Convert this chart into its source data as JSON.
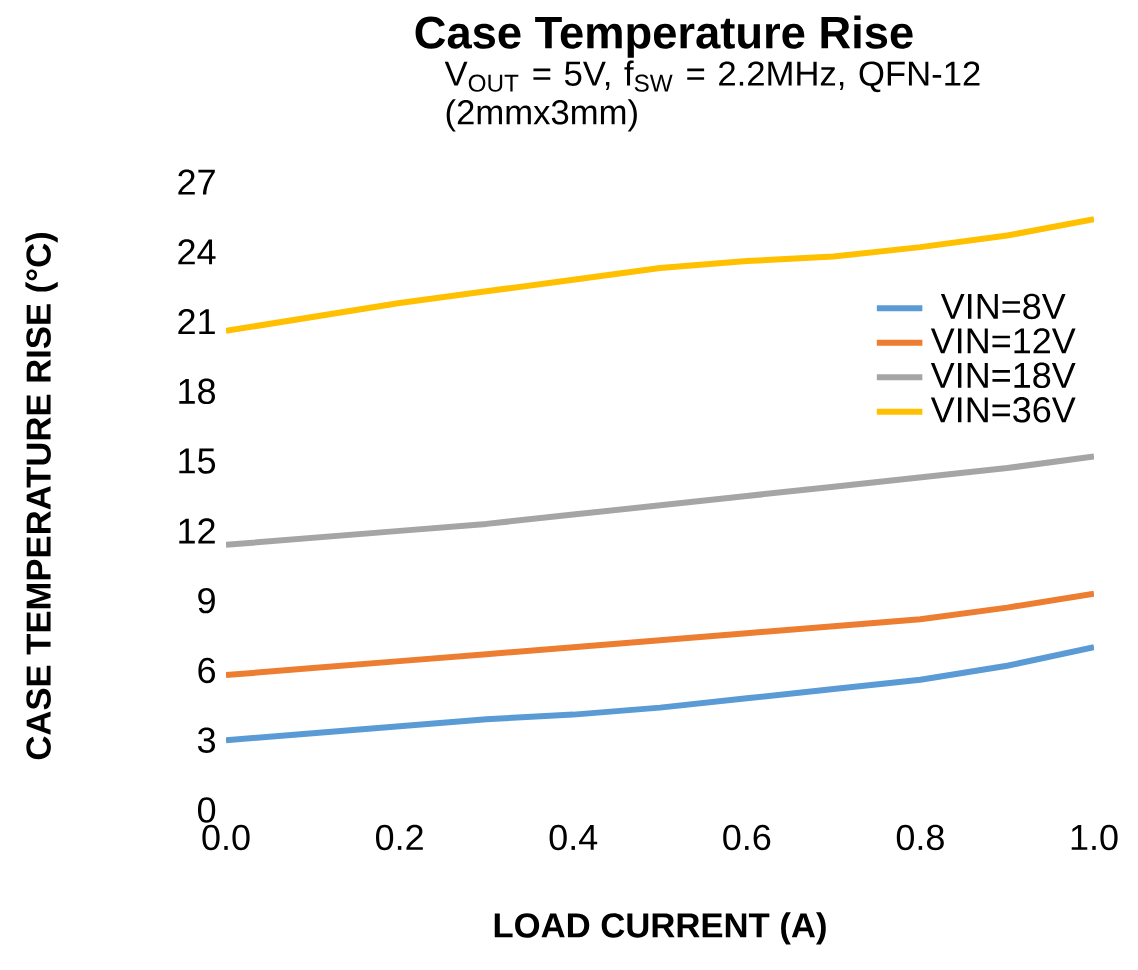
{
  "chart_data": {
    "type": "line",
    "title": "Case Temperature Rise",
    "subtitle": "V$_{OUT}$ = 5V, f$_{SW}$ = 2.2MHz, QFN-12 (2mmx3mm)",
    "xlabel": "LOAD CURRENT (A)",
    "ylabel": "CASE TEMPERATURE RISE (°C)",
    "x": [
      0,
      0.1,
      0.2,
      0.3,
      0.4,
      0.5,
      0.6,
      0.7,
      0.8,
      0.9,
      1.0
    ],
    "series": [
      {
        "name": "VIN=8V",
        "color": "#5b9bd5",
        "values": [
          3.0,
          3.3,
          3.6,
          3.9,
          4.1,
          4.4,
          4.8,
          5.2,
          5.6,
          6.2,
          7.0
        ]
      },
      {
        "name": "VIN=12V",
        "color": "#ed7d31",
        "values": [
          5.8,
          6.1,
          6.4,
          6.7,
          7.0,
          7.3,
          7.6,
          7.9,
          8.2,
          8.7,
          9.3
        ]
      },
      {
        "name": "VIN=18V",
        "color": "#a5a5a5",
        "values": [
          11.4,
          11.7,
          12.0,
          12.3,
          12.7,
          13.1,
          13.5,
          13.9,
          14.3,
          14.7,
          15.2
        ]
      },
      {
        "name": "VIN=36V",
        "color": "#ffc000",
        "values": [
          20.6,
          21.2,
          21.8,
          22.3,
          22.8,
          23.3,
          23.6,
          23.8,
          24.2,
          24.7,
          25.4
        ]
      }
    ],
    "xlim": [
      0,
      1
    ],
    "ylim": [
      0,
      27
    ],
    "xticks": [
      {
        "value": 0,
        "label": "0.0"
      },
      {
        "value": 0.2,
        "label": "0.2"
      },
      {
        "value": 0.4,
        "label": "0.4"
      },
      {
        "value": 0.6,
        "label": "0.6"
      },
      {
        "value": 0.8,
        "label": "0.8"
      },
      {
        "value": 1,
        "label": "1.0"
      }
    ],
    "yticks": [
      0,
      3,
      6,
      9,
      12,
      15,
      18,
      21,
      24,
      27
    ],
    "legend": "top right",
    "grid": false,
    "marker": "none",
    "line_style": "solid"
  }
}
